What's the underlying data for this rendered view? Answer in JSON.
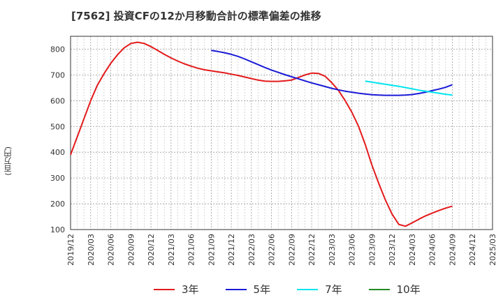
{
  "title": "[7562]  投資CFの12か月移動合計の標準偏差の推移",
  "chart_data": {
    "type": "line",
    "title": "[7562]  投資CFの12か月移動合計の標準偏差の推移",
    "xlabel": "",
    "ylabel": "(百万円)",
    "ylim": [
      100,
      850
    ],
    "yticks": [
      100,
      200,
      300,
      400,
      500,
      600,
      700,
      800
    ],
    "x_ticks": [
      "2019/12",
      "2020/03",
      "2020/06",
      "2020/09",
      "2020/12",
      "2021/03",
      "2021/06",
      "2021/09",
      "2021/12",
      "2022/03",
      "2022/06",
      "2022/09",
      "2022/12",
      "2023/03",
      "2023/06",
      "2023/09",
      "2023/12",
      "2024/03",
      "2024/06",
      "2024/09",
      "2024/12",
      "2025/03"
    ],
    "grid": true,
    "legend_position": "bottom",
    "series": [
      {
        "name": "3年",
        "color": "#e31a1c",
        "x": [
          "2019/12",
          "2020/01",
          "2020/02",
          "2020/03",
          "2020/04",
          "2020/05",
          "2020/06",
          "2020/07",
          "2020/08",
          "2020/09",
          "2020/10",
          "2020/11",
          "2020/12",
          "2021/01",
          "2021/02",
          "2021/03",
          "2021/04",
          "2021/05",
          "2021/06",
          "2021/07",
          "2021/08",
          "2021/09",
          "2021/10",
          "2021/11",
          "2021/12",
          "2022/01",
          "2022/02",
          "2022/03",
          "2022/04",
          "2022/05",
          "2022/06",
          "2022/07",
          "2022/08",
          "2022/09",
          "2022/10",
          "2022/11",
          "2022/12",
          "2023/01",
          "2023/02",
          "2023/03",
          "2023/04",
          "2023/05",
          "2023/06",
          "2023/07",
          "2023/08",
          "2023/09",
          "2023/10",
          "2023/11",
          "2023/12",
          "2024/01",
          "2024/02",
          "2024/03",
          "2024/04",
          "2024/05",
          "2024/06",
          "2024/07",
          "2024/08",
          "2024/09"
        ],
        "values": [
          390,
          460,
          530,
          600,
          660,
          705,
          745,
          778,
          805,
          822,
          827,
          822,
          810,
          795,
          780,
          766,
          754,
          743,
          734,
          726,
          720,
          716,
          712,
          708,
          703,
          698,
          692,
          686,
          680,
          676,
          675,
          675,
          677,
          680,
          690,
          700,
          707,
          706,
          695,
          670,
          640,
          600,
          555,
          500,
          430,
          350,
          280,
          215,
          160,
          120,
          113,
          126,
          140,
          153,
          164,
          174,
          183,
          191
        ]
      },
      {
        "name": "5年",
        "color": "#1a1ad6",
        "x": [
          "2021/09",
          "2021/10",
          "2021/11",
          "2021/12",
          "2022/01",
          "2022/02",
          "2022/03",
          "2022/04",
          "2022/05",
          "2022/06",
          "2022/07",
          "2022/08",
          "2022/09",
          "2022/10",
          "2022/11",
          "2022/12",
          "2023/01",
          "2023/02",
          "2023/03",
          "2023/04",
          "2023/05",
          "2023/06",
          "2023/07",
          "2023/08",
          "2023/09",
          "2023/10",
          "2023/11",
          "2023/12",
          "2024/01",
          "2024/02",
          "2024/03",
          "2024/04",
          "2024/05",
          "2024/06",
          "2024/07",
          "2024/08",
          "2024/09"
        ],
        "values": [
          795,
          791,
          786,
          780,
          772,
          762,
          751,
          740,
          729,
          719,
          710,
          701,
          693,
          685,
          677,
          669,
          662,
          655,
          648,
          642,
          637,
          633,
          629,
          626,
          623,
          622,
          621,
          621,
          621,
          622,
          624,
          628,
          633,
          639,
          645,
          652,
          662
        ]
      },
      {
        "name": "7年",
        "color": "#00e5ee",
        "x": [
          "2023/08",
          "2023/09",
          "2023/10",
          "2023/11",
          "2023/12",
          "2024/01",
          "2024/02",
          "2024/03",
          "2024/04",
          "2024/05",
          "2024/06",
          "2024/07",
          "2024/08",
          "2024/09"
        ],
        "values": [
          676,
          672,
          668,
          664,
          660,
          656,
          651,
          646,
          641,
          637,
          633,
          629,
          625,
          622
        ]
      },
      {
        "name": "10年",
        "color": "#228b22",
        "x": [],
        "values": []
      }
    ]
  }
}
